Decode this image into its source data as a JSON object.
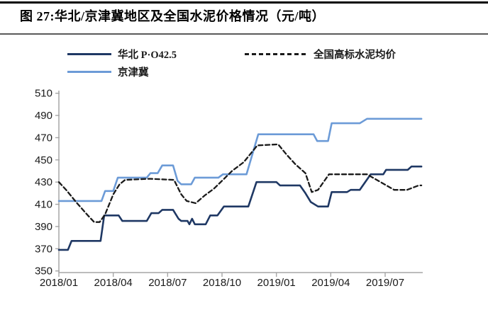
{
  "header": {
    "figure_label": "图 27:",
    "title": "华北/京津冀地区及全国水泥价格情况（元/吨）"
  },
  "legend": {
    "items": [
      {
        "label": "华北 P·O42.5",
        "color": "#1f3864",
        "dash": false
      },
      {
        "label": "京津冀",
        "color": "#6c9bd7",
        "dash": false
      },
      {
        "label": "全国高标水泥均价",
        "color": "#1a1a1a",
        "dash": true
      }
    ]
  },
  "chart_data": {
    "type": "line",
    "title": "华北/京津冀地区及全国水泥价格情况",
    "unit": "元/吨",
    "grid": false,
    "legend_position": "top",
    "y_axis": {
      "min": 350,
      "max": 510,
      "step": 20,
      "tick_labels": [
        "350",
        "370",
        "390",
        "410",
        "430",
        "450",
        "470",
        "490",
        "510"
      ]
    },
    "x_axis": {
      "tick_labels": [
        "2018/01",
        "2018/04",
        "2018/07",
        "2018/10",
        "2019/01",
        "2019/04",
        "2019/07"
      ],
      "tick_month_index": [
        0,
        3,
        6,
        9,
        12,
        15,
        18
      ],
      "months_span": 20
    },
    "axis_color": "#a6a6a6",
    "label_color": "#1a1a1a",
    "series": [
      {
        "name": "华北 P·O42.5",
        "color": "#1f3864",
        "line_style": "solid",
        "points": [
          [
            0,
            369
          ],
          [
            0.5,
            369
          ],
          [
            0.7,
            377
          ],
          [
            2.3,
            377
          ],
          [
            2.5,
            400
          ],
          [
            3.3,
            400
          ],
          [
            3.5,
            395
          ],
          [
            4.85,
            395
          ],
          [
            5.1,
            402
          ],
          [
            5.5,
            402
          ],
          [
            5.7,
            405
          ],
          [
            6.3,
            405
          ],
          [
            6.6,
            397
          ],
          [
            6.75,
            395
          ],
          [
            7.1,
            395
          ],
          [
            7.2,
            392
          ],
          [
            7.35,
            397
          ],
          [
            7.5,
            392
          ],
          [
            8.1,
            392
          ],
          [
            8.35,
            400
          ],
          [
            8.75,
            400
          ],
          [
            9.1,
            408
          ],
          [
            10.45,
            408
          ],
          [
            10.9,
            430
          ],
          [
            12.0,
            430
          ],
          [
            12.2,
            427
          ],
          [
            13.3,
            427
          ],
          [
            13.6,
            420
          ],
          [
            13.9,
            412
          ],
          [
            14.3,
            408
          ],
          [
            14.85,
            408
          ],
          [
            15.05,
            421
          ],
          [
            15.9,
            421
          ],
          [
            16.1,
            423
          ],
          [
            16.6,
            423
          ],
          [
            17.2,
            437
          ],
          [
            17.9,
            437
          ],
          [
            18.05,
            441
          ],
          [
            19.25,
            441
          ],
          [
            19.45,
            444
          ],
          [
            20,
            444
          ]
        ]
      },
      {
        "name": "京津冀",
        "color": "#6c9bd7",
        "line_style": "solid",
        "points": [
          [
            0,
            413
          ],
          [
            2.35,
            413
          ],
          [
            2.55,
            422
          ],
          [
            3.0,
            422
          ],
          [
            3.25,
            434
          ],
          [
            4.85,
            434
          ],
          [
            5.05,
            438
          ],
          [
            5.45,
            438
          ],
          [
            5.7,
            445
          ],
          [
            6.3,
            445
          ],
          [
            6.55,
            431
          ],
          [
            6.75,
            428
          ],
          [
            7.3,
            428
          ],
          [
            7.5,
            434
          ],
          [
            8.8,
            434
          ],
          [
            9.05,
            437
          ],
          [
            10.35,
            437
          ],
          [
            11.0,
            473
          ],
          [
            14.05,
            473
          ],
          [
            14.25,
            467
          ],
          [
            14.85,
            467
          ],
          [
            15.05,
            483
          ],
          [
            16.6,
            483
          ],
          [
            17.0,
            487
          ],
          [
            20,
            487
          ]
        ]
      },
      {
        "name": "全国高标水泥均价",
        "color": "#1a1a1a",
        "line_style": "dashed",
        "points": [
          [
            0,
            430
          ],
          [
            0.4,
            423
          ],
          [
            1.0,
            411
          ],
          [
            1.6,
            400
          ],
          [
            1.95,
            394
          ],
          [
            2.25,
            394
          ],
          [
            2.55,
            401
          ],
          [
            3.0,
            419
          ],
          [
            3.35,
            428
          ],
          [
            3.65,
            432
          ],
          [
            5.0,
            433
          ],
          [
            6.35,
            432
          ],
          [
            6.75,
            419
          ],
          [
            7.05,
            413
          ],
          [
            7.55,
            411
          ],
          [
            8.05,
            418
          ],
          [
            8.55,
            424
          ],
          [
            9.05,
            432
          ],
          [
            9.55,
            440
          ],
          [
            10.2,
            448
          ],
          [
            10.95,
            463
          ],
          [
            12.1,
            464
          ],
          [
            12.55,
            455
          ],
          [
            13.05,
            446
          ],
          [
            13.6,
            438
          ],
          [
            13.95,
            421
          ],
          [
            14.3,
            423
          ],
          [
            14.9,
            437
          ],
          [
            17.0,
            437
          ],
          [
            18.5,
            423
          ],
          [
            19.2,
            423
          ],
          [
            19.85,
            427
          ],
          [
            20,
            427
          ]
        ]
      }
    ]
  }
}
